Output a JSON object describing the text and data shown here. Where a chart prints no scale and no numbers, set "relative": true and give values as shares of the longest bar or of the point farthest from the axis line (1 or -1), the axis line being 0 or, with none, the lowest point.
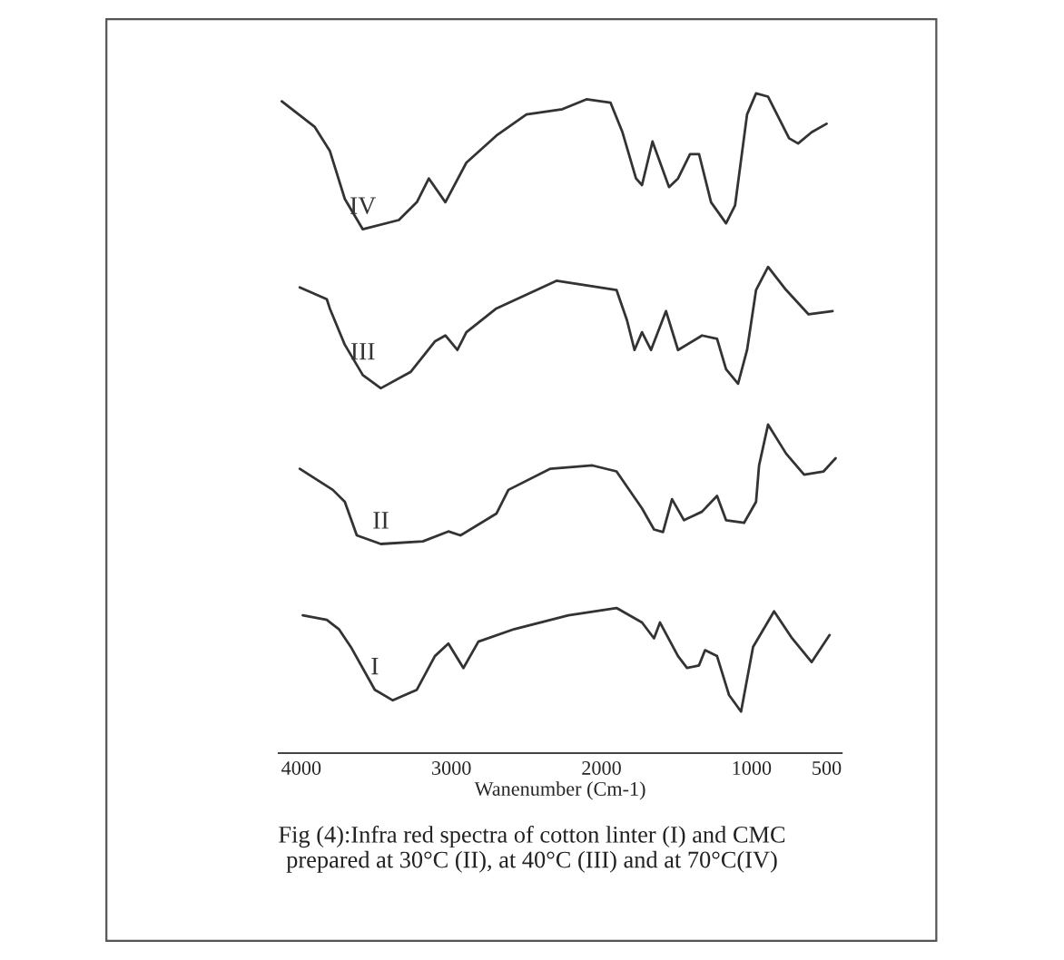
{
  "chart_data": {
    "type": "line",
    "relative": true,
    "xlabel": "Wanenumber (Cm-1)",
    "xlim": [
      4150,
      400
    ],
    "xticks": [
      4000,
      3000,
      2000,
      1000,
      500
    ],
    "annotations": [
      "Fig (4):Infra red spectra of cotton linter (I) and CMC\nprepared at 30°C (II), at 40°C (III) and at 70°C(IV)"
    ],
    "series": [
      {
        "name": "IV",
        "color": "#333333",
        "x": [
          4130,
          3910,
          3810,
          3710,
          3590,
          3350,
          3230,
          3150,
          3040,
          2900,
          2700,
          2500,
          2260,
          2100,
          1940,
          1860,
          1770,
          1730,
          1660,
          1550,
          1490,
          1410,
          1350,
          1270,
          1170,
          1110,
          1030,
          970,
          890,
          750,
          690,
          600,
          500
        ],
        "values": [
          0.988,
          0.949,
          0.913,
          0.84,
          0.794,
          0.808,
          0.835,
          0.871,
          0.835,
          0.895,
          0.936,
          0.968,
          0.976,
          0.991,
          0.986,
          0.941,
          0.871,
          0.861,
          0.927,
          0.858,
          0.871,
          0.908,
          0.908,
          0.835,
          0.803,
          0.83,
          0.968,
          1.0,
          0.995,
          0.932,
          0.924,
          0.941,
          0.954
        ]
      },
      {
        "name": "III",
        "color": "#333333",
        "x": [
          4010,
          3830,
          3810,
          3710,
          3590,
          3470,
          3270,
          3110,
          3040,
          2960,
          2900,
          2700,
          2300,
          1900,
          1830,
          1780,
          1730,
          1670,
          1570,
          1490,
          1330,
          1230,
          1170,
          1090,
          1030,
          970,
          890,
          770,
          620,
          460
        ],
        "values": [
          0.706,
          0.688,
          0.674,
          0.619,
          0.573,
          0.553,
          0.578,
          0.624,
          0.633,
          0.611,
          0.638,
          0.674,
          0.716,
          0.702,
          0.656,
          0.611,
          0.638,
          0.611,
          0.67,
          0.611,
          0.633,
          0.628,
          0.582,
          0.56,
          0.611,
          0.702,
          0.737,
          0.702,
          0.665,
          0.67
        ]
      },
      {
        "name": "II",
        "color": "#333333",
        "x": [
          4010,
          3790,
          3710,
          3630,
          3470,
          3190,
          3020,
          2940,
          2700,
          2620,
          2340,
          2060,
          1900,
          1730,
          1650,
          1590,
          1530,
          1450,
          1330,
          1230,
          1170,
          1050,
          970,
          950,
          890,
          770,
          650,
          520,
          440
        ],
        "values": [
          0.431,
          0.399,
          0.381,
          0.33,
          0.317,
          0.321,
          0.336,
          0.33,
          0.363,
          0.399,
          0.431,
          0.436,
          0.427,
          0.371,
          0.339,
          0.335,
          0.385,
          0.353,
          0.366,
          0.39,
          0.353,
          0.349,
          0.381,
          0.436,
          0.498,
          0.454,
          0.422,
          0.427,
          0.447
        ]
      },
      {
        "name": "I",
        "color": "#333333",
        "x": [
          3990,
          3830,
          3750,
          3670,
          3510,
          3390,
          3230,
          3110,
          3020,
          2920,
          2820,
          2580,
          2220,
          1900,
          1730,
          1650,
          1610,
          1490,
          1430,
          1350,
          1310,
          1230,
          1150,
          1070,
          990,
          850,
          730,
          600,
          480
        ],
        "values": [
          0.209,
          0.202,
          0.188,
          0.161,
          0.096,
          0.08,
          0.096,
          0.147,
          0.166,
          0.129,
          0.169,
          0.188,
          0.209,
          0.22,
          0.198,
          0.174,
          0.198,
          0.147,
          0.129,
          0.133,
          0.156,
          0.147,
          0.088,
          0.063,
          0.161,
          0.215,
          0.174,
          0.138,
          0.179
        ]
      }
    ]
  }
}
